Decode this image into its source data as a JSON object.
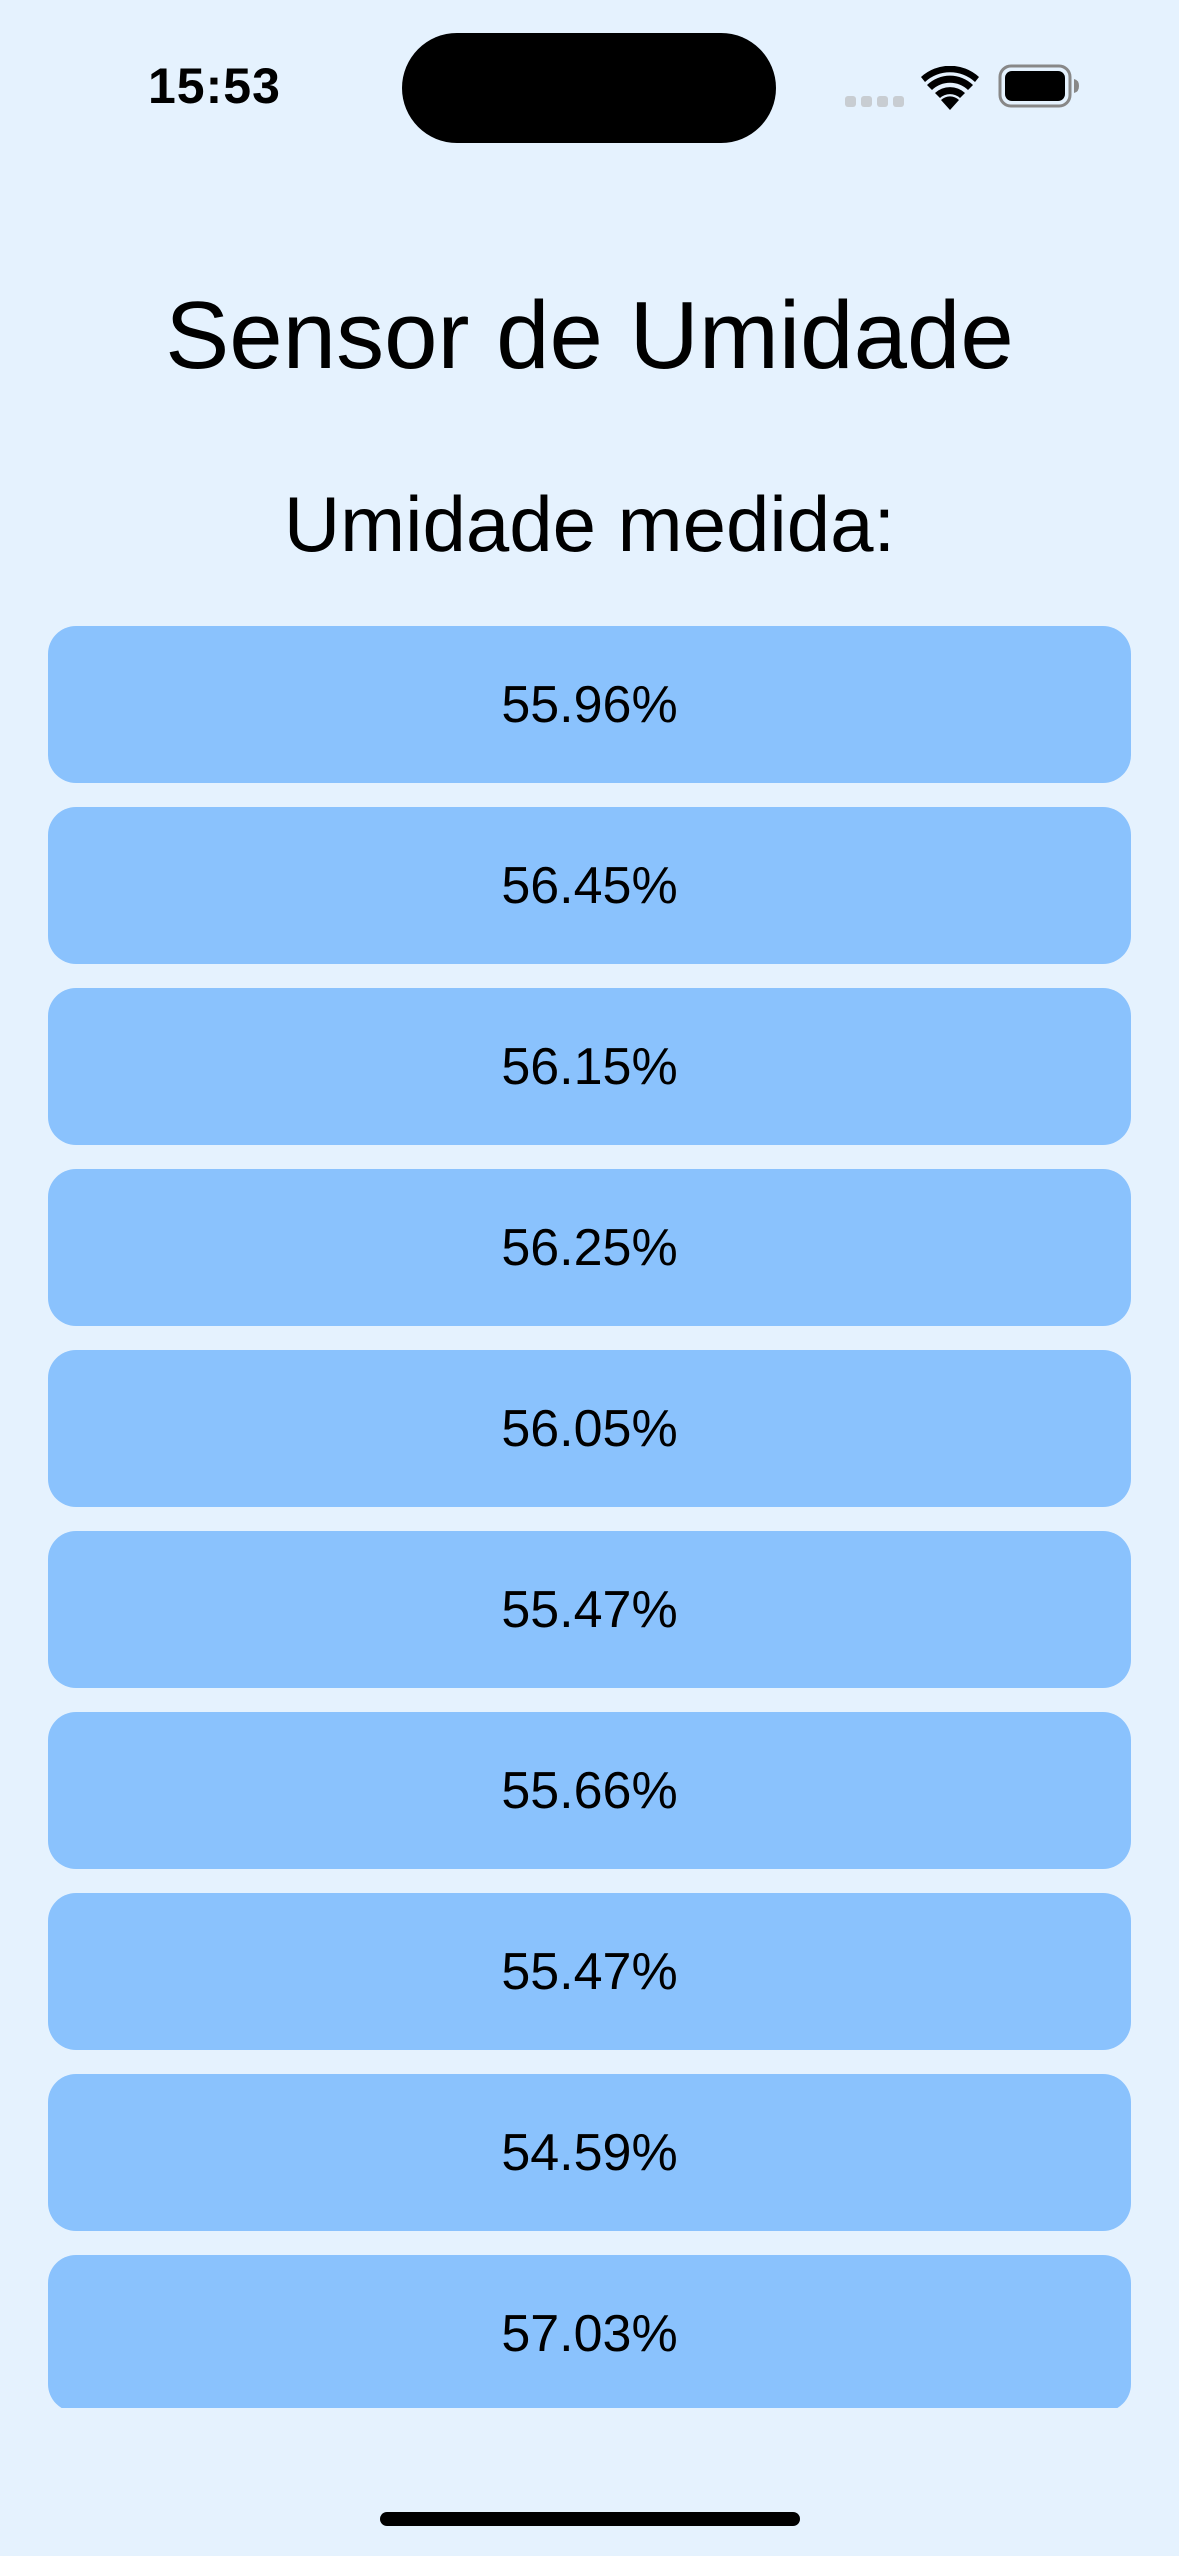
{
  "status_bar": {
    "time": "15:53",
    "icons": [
      "signal-icon",
      "wifi-icon",
      "battery-icon"
    ]
  },
  "screen": {
    "title": "Sensor de Umidade",
    "subtitle": "Umidade medida:"
  },
  "readings": [
    "55.96%",
    "56.45%",
    "56.15%",
    "56.25%",
    "56.05%",
    "55.47%",
    "55.66%",
    "55.47%",
    "54.59%",
    "57.03%"
  ],
  "colors": {
    "background": "#E5F2FE",
    "card": "#8AC2FD",
    "text": "#000000"
  }
}
